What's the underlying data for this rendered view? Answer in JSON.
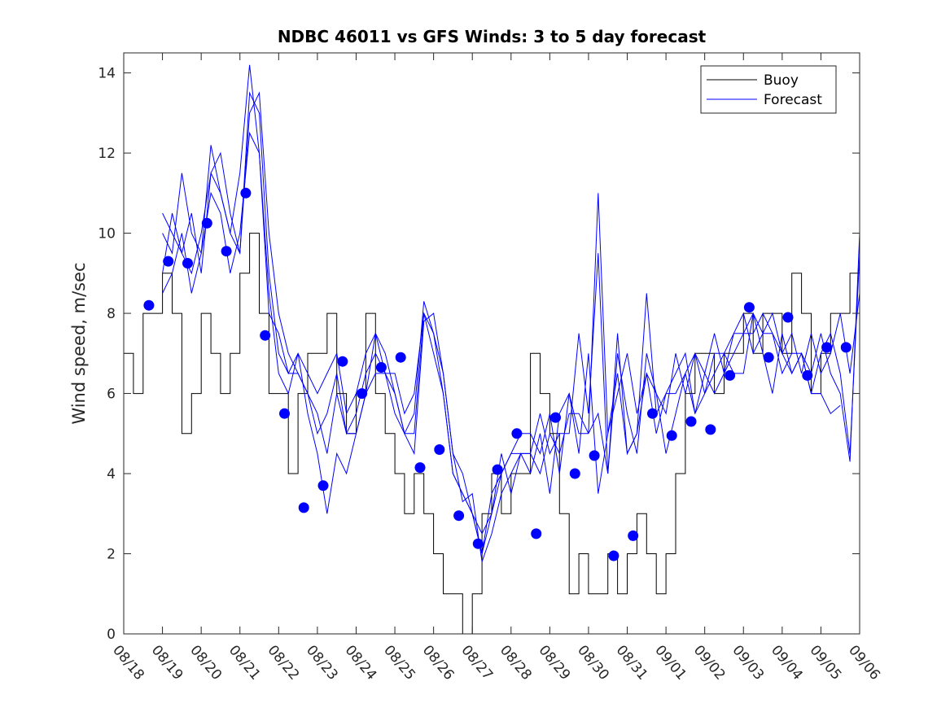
{
  "chart_data": {
    "type": "line",
    "title": "NDBC 46011 vs GFS Winds: 3 to 5 day forecast",
    "xlabel": "",
    "ylabel": "Wind speed, m/sec",
    "x_range_days": [
      0,
      19
    ],
    "ylim": [
      0,
      14.5
    ],
    "x_ticks": [
      "08/18",
      "08/19",
      "08/20",
      "08/21",
      "08/22",
      "08/23",
      "08/24",
      "08/25",
      "08/26",
      "08/27",
      "08/28",
      "08/29",
      "08/30",
      "08/31",
      "09/01",
      "09/02",
      "09/03",
      "09/04",
      "09/05",
      "09/06"
    ],
    "y_ticks": [
      0,
      2,
      4,
      6,
      8,
      10,
      12,
      14
    ],
    "grid": false,
    "legend": {
      "position": "top-right",
      "entries": [
        "Buoy",
        "Forecast"
      ]
    },
    "colors": {
      "buoy": "#000000",
      "forecast": "#0000ff",
      "axis": "#262626"
    },
    "buoy": {
      "name": "Buoy",
      "x": [
        0.0,
        0.25,
        0.5,
        0.75,
        1.0,
        1.25,
        1.5,
        1.75,
        2.0,
        2.25,
        2.5,
        2.75,
        3.0,
        3.25,
        3.5,
        3.75,
        4.0,
        4.25,
        4.5,
        4.75,
        5.0,
        5.25,
        5.5,
        5.75,
        6.0,
        6.25,
        6.5,
        6.75,
        7.0,
        7.25,
        7.5,
        7.75,
        8.0,
        8.25,
        8.5,
        8.75,
        9.0,
        9.25,
        9.5,
        9.75,
        10.0,
        10.25,
        10.5,
        10.75,
        11.0,
        11.25,
        11.5,
        11.75,
        12.0,
        12.25,
        12.5,
        12.75,
        13.0,
        13.25,
        13.5,
        13.75,
        14.0,
        14.25,
        14.5,
        14.75,
        15.0,
        15.25,
        15.5,
        15.75,
        16.0,
        16.25,
        16.5,
        16.75,
        17.0,
        17.25,
        17.5,
        17.75,
        18.0,
        18.25,
        18.5,
        18.75,
        19.0
      ],
      "values": [
        7,
        6,
        8,
        8,
        9,
        8,
        5,
        6,
        8,
        7,
        6,
        7,
        9,
        10,
        8,
        6,
        6,
        4,
        6,
        7,
        7,
        8,
        6,
        5,
        6,
        8,
        6,
        5,
        4,
        3,
        4,
        3,
        2,
        1,
        1,
        0,
        1,
        3,
        4,
        3,
        4,
        4,
        7,
        6,
        5,
        3,
        1,
        2,
        1,
        1,
        2,
        1,
        2,
        3,
        2,
        1,
        2,
        4,
        6,
        7,
        7,
        6,
        7,
        7,
        8,
        7,
        8,
        8,
        7,
        9,
        8,
        6,
        7,
        8,
        8,
        9,
        8
      ]
    },
    "forecast": {
      "name": "Forecast",
      "series": [
        {
          "x": [
            1.0,
            1.25,
            1.5,
            1.75,
            2.0,
            2.25,
            2.5,
            2.75,
            3.0,
            3.25,
            3.5,
            3.75,
            4.0,
            4.25,
            4.5,
            4.75,
            5.0,
            5.25,
            5.5,
            5.75,
            6.0,
            6.25,
            6.5,
            6.75,
            7.0,
            7.25,
            7.5,
            7.75,
            8.0,
            8.25,
            8.5,
            8.75,
            9.0,
            9.25,
            9.5,
            9.75,
            10.0,
            10.25,
            10.5,
            10.75,
            11.0,
            11.25,
            11.5,
            11.75,
            12.0,
            12.25,
            12.5,
            12.75,
            13.0,
            13.25,
            13.5,
            13.75,
            14.0,
            14.25,
            14.5,
            14.75,
            15.0,
            15.25,
            15.5,
            15.75,
            16.0,
            16.25,
            16.5,
            16.75,
            17.0,
            17.25,
            17.5,
            17.75,
            18.0,
            18.25,
            18.5,
            18.75,
            19.0
          ],
          "values": [
            10,
            9.5,
            11.5,
            10,
            9.5,
            12.2,
            11,
            10,
            11.5,
            14.2,
            12,
            8,
            7.5,
            6.5,
            7,
            6.5,
            6,
            6.5,
            7,
            5.5,
            6,
            7,
            7.5,
            6.5,
            6,
            5,
            5,
            8,
            7,
            6,
            4,
            3.5,
            3,
            2,
            3.5,
            4,
            4.5,
            5,
            5,
            4.5,
            5.5,
            4,
            6,
            4.5,
            7,
            3.5,
            5,
            6,
            7,
            5.5,
            6.5,
            5,
            6,
            6.5,
            7,
            5.5,
            6.5,
            6,
            6.5,
            7.5,
            8,
            7,
            7.5,
            8,
            7,
            7.5,
            6.5,
            7.5,
            6.5,
            7,
            8,
            6.5,
            8.5
          ]
        },
        {
          "x": [
            1.0,
            1.25,
            1.5,
            1.75,
            2.0,
            2.25,
            2.5,
            2.75,
            3.0,
            3.25,
            3.5,
            3.75,
            4.0,
            4.25,
            4.5,
            4.75,
            5.0,
            5.25,
            5.5,
            5.75,
            6.0,
            6.25,
            6.5,
            6.75,
            7.0,
            7.25,
            7.5,
            7.75,
            8.0,
            8.25,
            8.5,
            8.75,
            9.0,
            9.25,
            9.5,
            9.75,
            10.0,
            10.25,
            10.5,
            10.75,
            11.0,
            11.25,
            11.5,
            11.75,
            12.0,
            12.25,
            12.5,
            12.75,
            13.0,
            13.25,
            13.5,
            13.75,
            14.0,
            14.25,
            14.5,
            14.75,
            15.0,
            15.25,
            15.5,
            15.75,
            16.0,
            16.25,
            16.5,
            16.75,
            17.0,
            17.25,
            17.5,
            17.75,
            18.0,
            18.25,
            18.5,
            18.75,
            19.0
          ],
          "values": [
            10.5,
            10,
            9.5,
            10.5,
            9,
            11.5,
            12,
            10.5,
            9.5,
            13.5,
            13,
            9,
            7,
            6.5,
            6.5,
            6,
            5.5,
            4.5,
            6,
            5,
            5.5,
            6.5,
            7,
            6.5,
            6.5,
            5.5,
            6,
            8,
            7.5,
            6.5,
            4.5,
            4,
            3,
            2.5,
            3,
            4.5,
            3.5,
            4.5,
            4.5,
            5.5,
            4.5,
            5,
            5,
            7.5,
            5.5,
            9.5,
            4,
            7,
            5.5,
            4.5,
            7,
            6,
            5.5,
            7,
            6,
            7,
            6,
            7,
            7,
            7.5,
            7.5,
            7.5,
            8,
            7.5,
            7,
            6.5,
            7,
            6,
            7,
            7.5,
            6.5,
            4.5,
            9.5
          ]
        },
        {
          "x": [
            1.0,
            1.25,
            1.5,
            1.75,
            2.0,
            2.25,
            2.5,
            2.75,
            3.0,
            3.25,
            3.5,
            3.75,
            4.0,
            4.25,
            4.5,
            4.75,
            5.0,
            5.25,
            5.5,
            5.75,
            6.0,
            6.25,
            6.5,
            6.75,
            7.0,
            7.25,
            7.5,
            7.75,
            8.0,
            8.25,
            8.5,
            8.75,
            9.0,
            9.25,
            9.5,
            9.75,
            10.0,
            10.25,
            10.5,
            10.75,
            11.0,
            11.25,
            11.5,
            11.75,
            12.0,
            12.25,
            12.5,
            12.75,
            13.0,
            13.25,
            13.5,
            13.75,
            14.0,
            14.25,
            14.5,
            14.75,
            15.0,
            15.25,
            15.5,
            15.75,
            16.0,
            16.25,
            16.5,
            16.75,
            17.0,
            17.25,
            17.5,
            17.75,
            18.0,
            18.25,
            18.5,
            18.75,
            19.0
          ],
          "values": [
            9,
            10.5,
            9.5,
            9,
            10,
            11.5,
            11,
            10,
            9.5,
            13,
            13.5,
            10,
            8,
            7,
            6.5,
            6,
            5,
            5.5,
            6.5,
            5,
            5,
            6,
            7.5,
            7,
            6,
            5,
            5.5,
            8.3,
            7.5,
            6,
            4,
            3.5,
            3,
            2,
            3,
            4,
            4.5,
            4.5,
            4.5,
            4,
            5,
            4.5,
            5.5,
            5.5,
            5,
            11,
            5,
            6.5,
            4.5,
            5,
            8.5,
            5.5,
            6,
            6,
            6.5,
            7,
            6.5,
            7.5,
            6.5,
            7,
            7.5,
            8,
            7.5,
            7.5,
            6.5,
            7,
            7,
            6.5,
            7.5,
            6.5,
            6,
            4.3,
            10
          ]
        },
        {
          "x": [
            1.0,
            1.25,
            1.5,
            1.75,
            2.0,
            2.25,
            2.5,
            2.75,
            3.0,
            3.25,
            3.5,
            3.75,
            4.0,
            4.25,
            4.5,
            4.75,
            5.0,
            5.25,
            5.5,
            5.75,
            6.0,
            6.25,
            6.5,
            6.75,
            7.0,
            7.25,
            7.5,
            7.75,
            8.0,
            8.25,
            8.5,
            8.75,
            9.0,
            9.25,
            9.5,
            9.75,
            10.0,
            10.25,
            10.5,
            10.75,
            11.0,
            11.25,
            11.5,
            11.75,
            12.0,
            12.25,
            12.5,
            12.75,
            13.0,
            13.25,
            13.5,
            13.75,
            14.0,
            14.25,
            14.5,
            14.75,
            15.0,
            15.25,
            15.5,
            15.75,
            16.0,
            16.25,
            16.5,
            16.75,
            17.0,
            17.25,
            17.5,
            17.75,
            18.0,
            18.25,
            18.5
          ],
          "values": [
            8.5,
            9,
            10,
            8.5,
            9.5,
            11,
            10.5,
            9,
            10,
            12.5,
            12,
            8.5,
            6.5,
            6,
            7,
            5.5,
            4.5,
            3,
            4.5,
            4,
            5,
            6,
            6.5,
            6.5,
            5.5,
            5,
            4.5,
            7.8,
            8,
            6.5,
            4.5,
            3.3,
            3.5,
            1.8,
            2.5,
            3.5,
            4,
            4.5,
            4,
            5,
            3.5,
            5.5,
            6,
            5,
            5,
            5.5,
            4,
            7.5,
            4.5,
            5,
            6.5,
            6,
            4.5,
            5.5,
            6.5,
            5.5,
            6,
            6.5,
            7,
            6.5,
            6.5,
            8,
            7,
            6,
            7.5,
            6.5,
            7,
            6,
            6,
            5.5,
            5.7
          ]
        }
      ]
    },
    "markers": {
      "x": [
        0.65,
        1.15,
        1.65,
        2.15,
        2.65,
        3.15,
        3.65,
        4.15,
        4.65,
        5.15,
        5.65,
        6.15,
        6.65,
        7.15,
        7.65,
        8.15,
        8.65,
        9.15,
        9.65,
        10.15,
        10.65,
        11.15,
        11.65,
        12.15,
        12.65,
        13.15,
        13.65,
        14.15,
        14.65,
        15.15,
        15.65,
        16.15,
        16.65,
        17.15,
        17.65,
        18.15,
        18.65
      ],
      "values": [
        8.2,
        9.3,
        9.25,
        10.25,
        9.55,
        11.0,
        7.45,
        5.5,
        3.15,
        3.7,
        6.8,
        6.0,
        6.65,
        6.9,
        4.15,
        4.6,
        2.95,
        2.25,
        4.1,
        5.0,
        2.5,
        5.4,
        4.0,
        4.45,
        1.95,
        2.45,
        5.5,
        4.95,
        5.3,
        5.1,
        6.45,
        8.15,
        6.9,
        7.9,
        6.45,
        7.15,
        7.15
      ]
    }
  }
}
